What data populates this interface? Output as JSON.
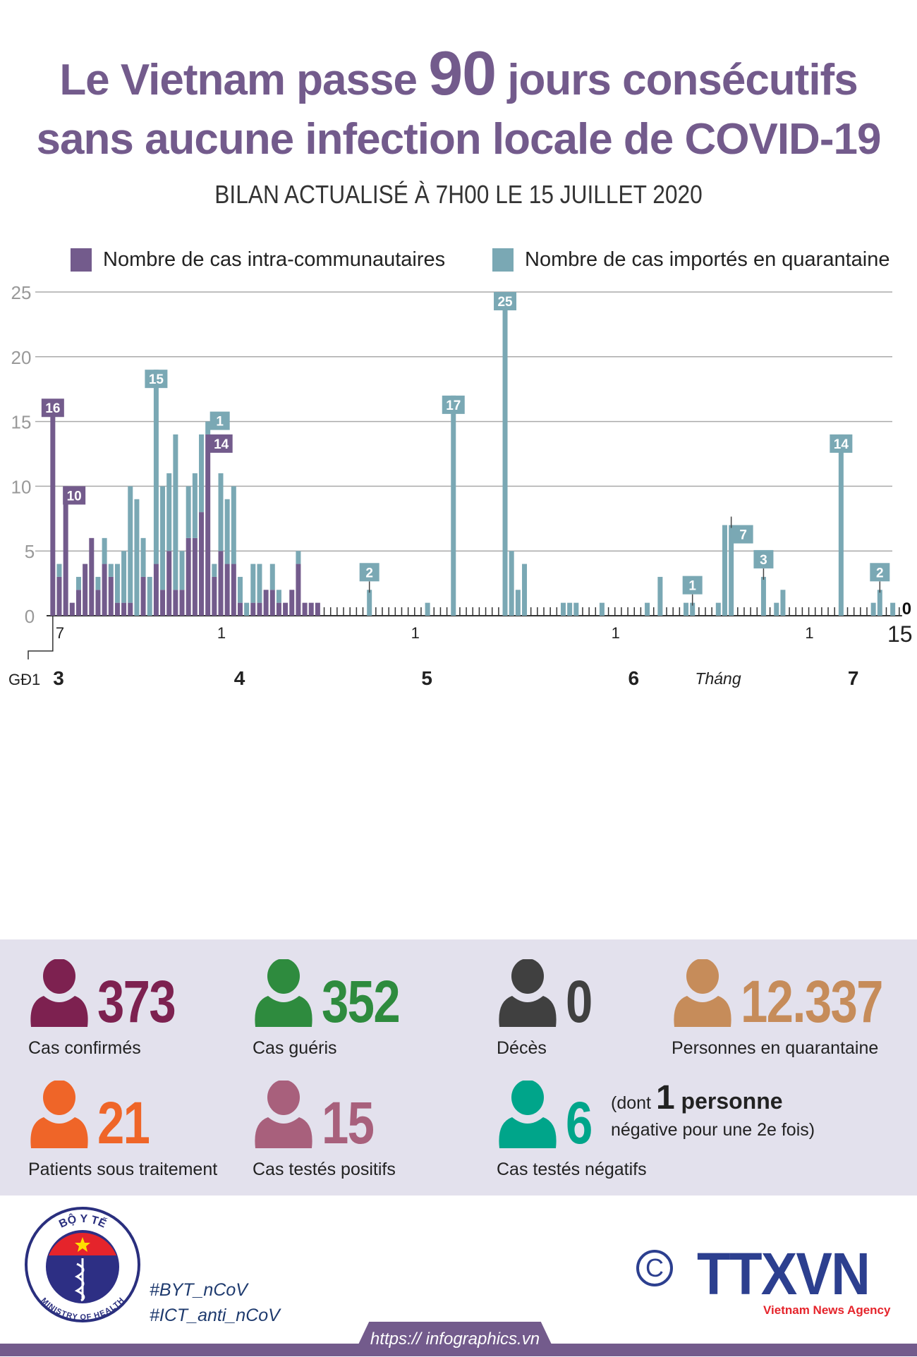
{
  "header": {
    "title_part1": "Le Vietnam passe ",
    "title_highlight": "90",
    "title_part2": " jours consécutifs",
    "title_line2": "sans aucune infection locale de COVID-19",
    "subtitle": "BILAN ACTUALISÉ À 7H00 LE 15 JUILLET 2020"
  },
  "colors": {
    "local": "#735b8c",
    "imported": "#7aa8b4",
    "confirmed": "#7d2150",
    "recovered": "#2e8b3e",
    "deaths": "#404040",
    "quarantine": "#c68c5a",
    "treatment": "#ef6528",
    "positive": "#a8607c",
    "negative": "#00a58a"
  },
  "chart_data": {
    "type": "bar",
    "stacked": true,
    "grid": true,
    "legend_position": "top",
    "ylim": [
      0,
      25
    ],
    "yticks": [
      "0",
      "5",
      "10",
      "15",
      "20",
      "25"
    ],
    "series": [
      {
        "name": "Nombre de cas intra-communautaires",
        "key": "local"
      },
      {
        "name": "Nombre de cas importés en quarantaine",
        "key": "imported"
      }
    ],
    "x_start": "2020-03-07",
    "x_end": "2020-07-15",
    "phase1": {
      "label": "GĐ1",
      "local": 16,
      "imported": 0
    },
    "day_tick_labels": [
      {
        "date": "2020-03-07",
        "text": "7"
      },
      {
        "date": "2020-04-01",
        "text": "1"
      },
      {
        "date": "2020-05-01",
        "text": "1"
      },
      {
        "date": "2020-06-01",
        "text": "1"
      },
      {
        "date": "2020-07-01",
        "text": "1"
      },
      {
        "date": "2020-07-15",
        "text": "15"
      }
    ],
    "month_labels": [
      {
        "date": "2020-03-07",
        "text": "3"
      },
      {
        "date": "2020-04-04",
        "text": "4"
      },
      {
        "date": "2020-05-03",
        "text": "5"
      },
      {
        "date": "2020-06-04",
        "text": "6"
      },
      {
        "date": "2020-07-08",
        "text": "7"
      }
    ],
    "month_axis_title": "Tháng",
    "points": [
      {
        "date": "2020-03-07",
        "local": 3,
        "imported": 1
      },
      {
        "date": "2020-03-08",
        "local": 10,
        "imported": 0
      },
      {
        "date": "2020-03-09",
        "local": 1,
        "imported": 0
      },
      {
        "date": "2020-03-10",
        "local": 2,
        "imported": 1
      },
      {
        "date": "2020-03-11",
        "local": 4,
        "imported": 0
      },
      {
        "date": "2020-03-12",
        "local": 6,
        "imported": 0
      },
      {
        "date": "2020-03-13",
        "local": 2,
        "imported": 1
      },
      {
        "date": "2020-03-14",
        "local": 4,
        "imported": 2
      },
      {
        "date": "2020-03-15",
        "local": 3,
        "imported": 1
      },
      {
        "date": "2020-03-16",
        "local": 1,
        "imported": 3
      },
      {
        "date": "2020-03-17",
        "local": 1,
        "imported": 4
      },
      {
        "date": "2020-03-18",
        "local": 1,
        "imported": 9
      },
      {
        "date": "2020-03-19",
        "local": 0,
        "imported": 9
      },
      {
        "date": "2020-03-20",
        "local": 3,
        "imported": 3
      },
      {
        "date": "2020-03-21",
        "local": 0,
        "imported": 3
      },
      {
        "date": "2020-03-22",
        "local": 4,
        "imported": 15
      },
      {
        "date": "2020-03-23",
        "local": 2,
        "imported": 8
      },
      {
        "date": "2020-03-24",
        "local": 5,
        "imported": 6
      },
      {
        "date": "2020-03-25",
        "local": 2,
        "imported": 12
      },
      {
        "date": "2020-03-26",
        "local": 2,
        "imported": 3
      },
      {
        "date": "2020-03-27",
        "local": 6,
        "imported": 4
      },
      {
        "date": "2020-03-28",
        "local": 6,
        "imported": 5
      },
      {
        "date": "2020-03-29",
        "local": 8,
        "imported": 6
      },
      {
        "date": "2020-03-30",
        "local": 14,
        "imported": 1
      },
      {
        "date": "2020-03-31",
        "local": 3,
        "imported": 1
      },
      {
        "date": "2020-04-01",
        "local": 5,
        "imported": 6
      },
      {
        "date": "2020-04-02",
        "local": 4,
        "imported": 5
      },
      {
        "date": "2020-04-03",
        "local": 4,
        "imported": 6
      },
      {
        "date": "2020-04-04",
        "local": 1,
        "imported": 2
      },
      {
        "date": "2020-04-05",
        "local": 0,
        "imported": 1
      },
      {
        "date": "2020-04-06",
        "local": 1,
        "imported": 3
      },
      {
        "date": "2020-04-07",
        "local": 1,
        "imported": 3
      },
      {
        "date": "2020-04-08",
        "local": 2,
        "imported": 0
      },
      {
        "date": "2020-04-09",
        "local": 2,
        "imported": 2
      },
      {
        "date": "2020-04-10",
        "local": 1,
        "imported": 1
      },
      {
        "date": "2020-04-11",
        "local": 1,
        "imported": 0
      },
      {
        "date": "2020-04-12",
        "local": 2,
        "imported": 0
      },
      {
        "date": "2020-04-13",
        "local": 4,
        "imported": 1
      },
      {
        "date": "2020-04-14",
        "local": 1,
        "imported": 0
      },
      {
        "date": "2020-04-15",
        "local": 1,
        "imported": 0
      },
      {
        "date": "2020-04-16",
        "local": 1,
        "imported": 0
      },
      {
        "date": "2020-04-24",
        "local": 0,
        "imported": 2
      },
      {
        "date": "2020-05-03",
        "local": 0,
        "imported": 1
      },
      {
        "date": "2020-05-07",
        "local": 0,
        "imported": 17
      },
      {
        "date": "2020-05-15",
        "local": 0,
        "imported": 25
      },
      {
        "date": "2020-05-16",
        "local": 0,
        "imported": 5
      },
      {
        "date": "2020-05-17",
        "local": 0,
        "imported": 2
      },
      {
        "date": "2020-05-18",
        "local": 0,
        "imported": 4
      },
      {
        "date": "2020-05-24",
        "local": 0,
        "imported": 1
      },
      {
        "date": "2020-05-25",
        "local": 0,
        "imported": 1
      },
      {
        "date": "2020-05-26",
        "local": 0,
        "imported": 1
      },
      {
        "date": "2020-05-30",
        "local": 0,
        "imported": 1
      },
      {
        "date": "2020-06-06",
        "local": 0,
        "imported": 1
      },
      {
        "date": "2020-06-08",
        "local": 0,
        "imported": 3
      },
      {
        "date": "2020-06-12",
        "local": 0,
        "imported": 1
      },
      {
        "date": "2020-06-13",
        "local": 0,
        "imported": 1
      },
      {
        "date": "2020-06-17",
        "local": 0,
        "imported": 1
      },
      {
        "date": "2020-06-18",
        "local": 0,
        "imported": 7
      },
      {
        "date": "2020-06-19",
        "local": 0,
        "imported": 7
      },
      {
        "date": "2020-06-24",
        "local": 0,
        "imported": 3
      },
      {
        "date": "2020-06-26",
        "local": 0,
        "imported": 1
      },
      {
        "date": "2020-06-27",
        "local": 0,
        "imported": 2
      },
      {
        "date": "2020-07-06",
        "local": 0,
        "imported": 14
      },
      {
        "date": "2020-07-11",
        "local": 0,
        "imported": 1
      },
      {
        "date": "2020-07-12",
        "local": 0,
        "imported": 2
      },
      {
        "date": "2020-07-14",
        "local": 0,
        "imported": 1
      },
      {
        "date": "2020-07-15",
        "local": 0,
        "imported": 0
      }
    ],
    "data_labels": [
      {
        "date": "GĐ1",
        "series": "local",
        "text": "16"
      },
      {
        "date": "2020-03-08",
        "series": "local",
        "text": "10"
      },
      {
        "date": "2020-03-22",
        "series": "imported",
        "text": "15"
      },
      {
        "date": "2020-03-30",
        "series": "imported",
        "text": "1"
      },
      {
        "date": "2020-03-30",
        "series": "local",
        "text": "14"
      },
      {
        "date": "2020-04-24",
        "series": "imported",
        "text": "2"
      },
      {
        "date": "2020-05-07",
        "series": "imported",
        "text": "17"
      },
      {
        "date": "2020-05-15",
        "series": "imported",
        "text": "25"
      },
      {
        "date": "2020-06-13",
        "series": "imported",
        "text": "1"
      },
      {
        "date": "2020-06-19",
        "series": "imported",
        "text": "7"
      },
      {
        "date": "2020-06-24",
        "series": "imported",
        "text": "3"
      },
      {
        "date": "2020-07-06",
        "series": "imported",
        "text": "14"
      },
      {
        "date": "2020-07-12",
        "series": "imported",
        "text": "2"
      },
      {
        "date": "2020-07-15",
        "series": "plain",
        "text": "0"
      }
    ]
  },
  "stats": {
    "confirmed": {
      "value": "373",
      "label": "Cas confirmés"
    },
    "recovered": {
      "value": "352",
      "label": "Cas guéris"
    },
    "deaths": {
      "value": "0",
      "label": "Décès"
    },
    "quarantine": {
      "value": "12.337",
      "label": "Personnes en quarantaine"
    },
    "treatment": {
      "value": "21",
      "label": "Patients sous traitement"
    },
    "positive": {
      "value": "15",
      "label": "Cas testés positifs"
    },
    "negative": {
      "value": "6",
      "label": "Cas testés négatifs",
      "note_prefix": "(dont ",
      "note_number": "1",
      "note_word": " personne",
      "note_line2": "négative pour une 2e fois)"
    }
  },
  "footer": {
    "ministry_logo_top": "BỘ Y TẾ",
    "ministry_logo_bottom": "MINISTRY OF HEALTH",
    "hashtags": [
      "#BYT_nCoV",
      "#ICT_anti_nCoV"
    ],
    "copyright": "©",
    "agency_logo": "TTXVN",
    "agency_name": "Vietnam News Agency",
    "url": "https:// infographics.vn"
  }
}
